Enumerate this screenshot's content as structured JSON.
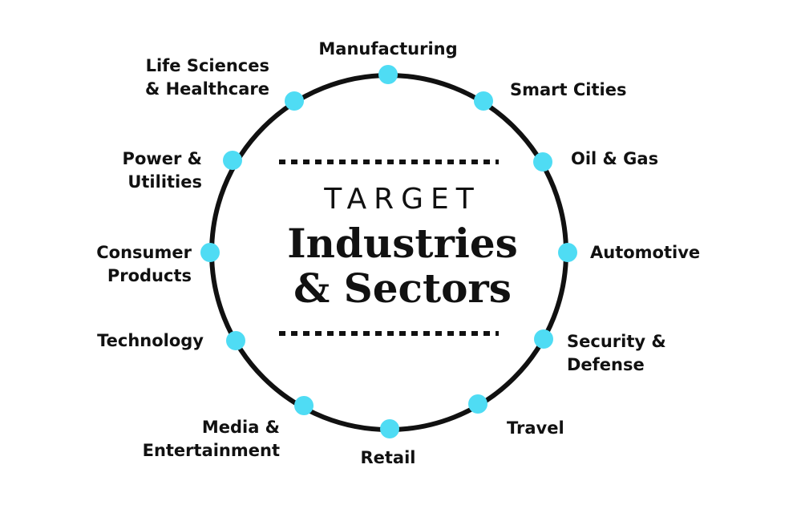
{
  "center": {
    "eyebrow": "TARGET",
    "title_line1": "Industries",
    "title_line2": "& Sectors"
  },
  "colors": {
    "ring": "#111111",
    "node": "#4fdcf4",
    "text": "#111111",
    "background": "#ffffff"
  },
  "sectors": [
    {
      "label": "Manufacturing"
    },
    {
      "label": "Smart Cities"
    },
    {
      "label": "Oil & Gas"
    },
    {
      "label": "Automotive"
    },
    {
      "label": "Security &\nDefense"
    },
    {
      "label": "Travel"
    },
    {
      "label": "Retail"
    },
    {
      "label": "Media &\nEntertainment"
    },
    {
      "label": "Technology"
    },
    {
      "label": "Consumer\nProducts"
    },
    {
      "label": "Power &\nUtilities"
    },
    {
      "label": "Life Sciences\n& Healthcare"
    }
  ]
}
